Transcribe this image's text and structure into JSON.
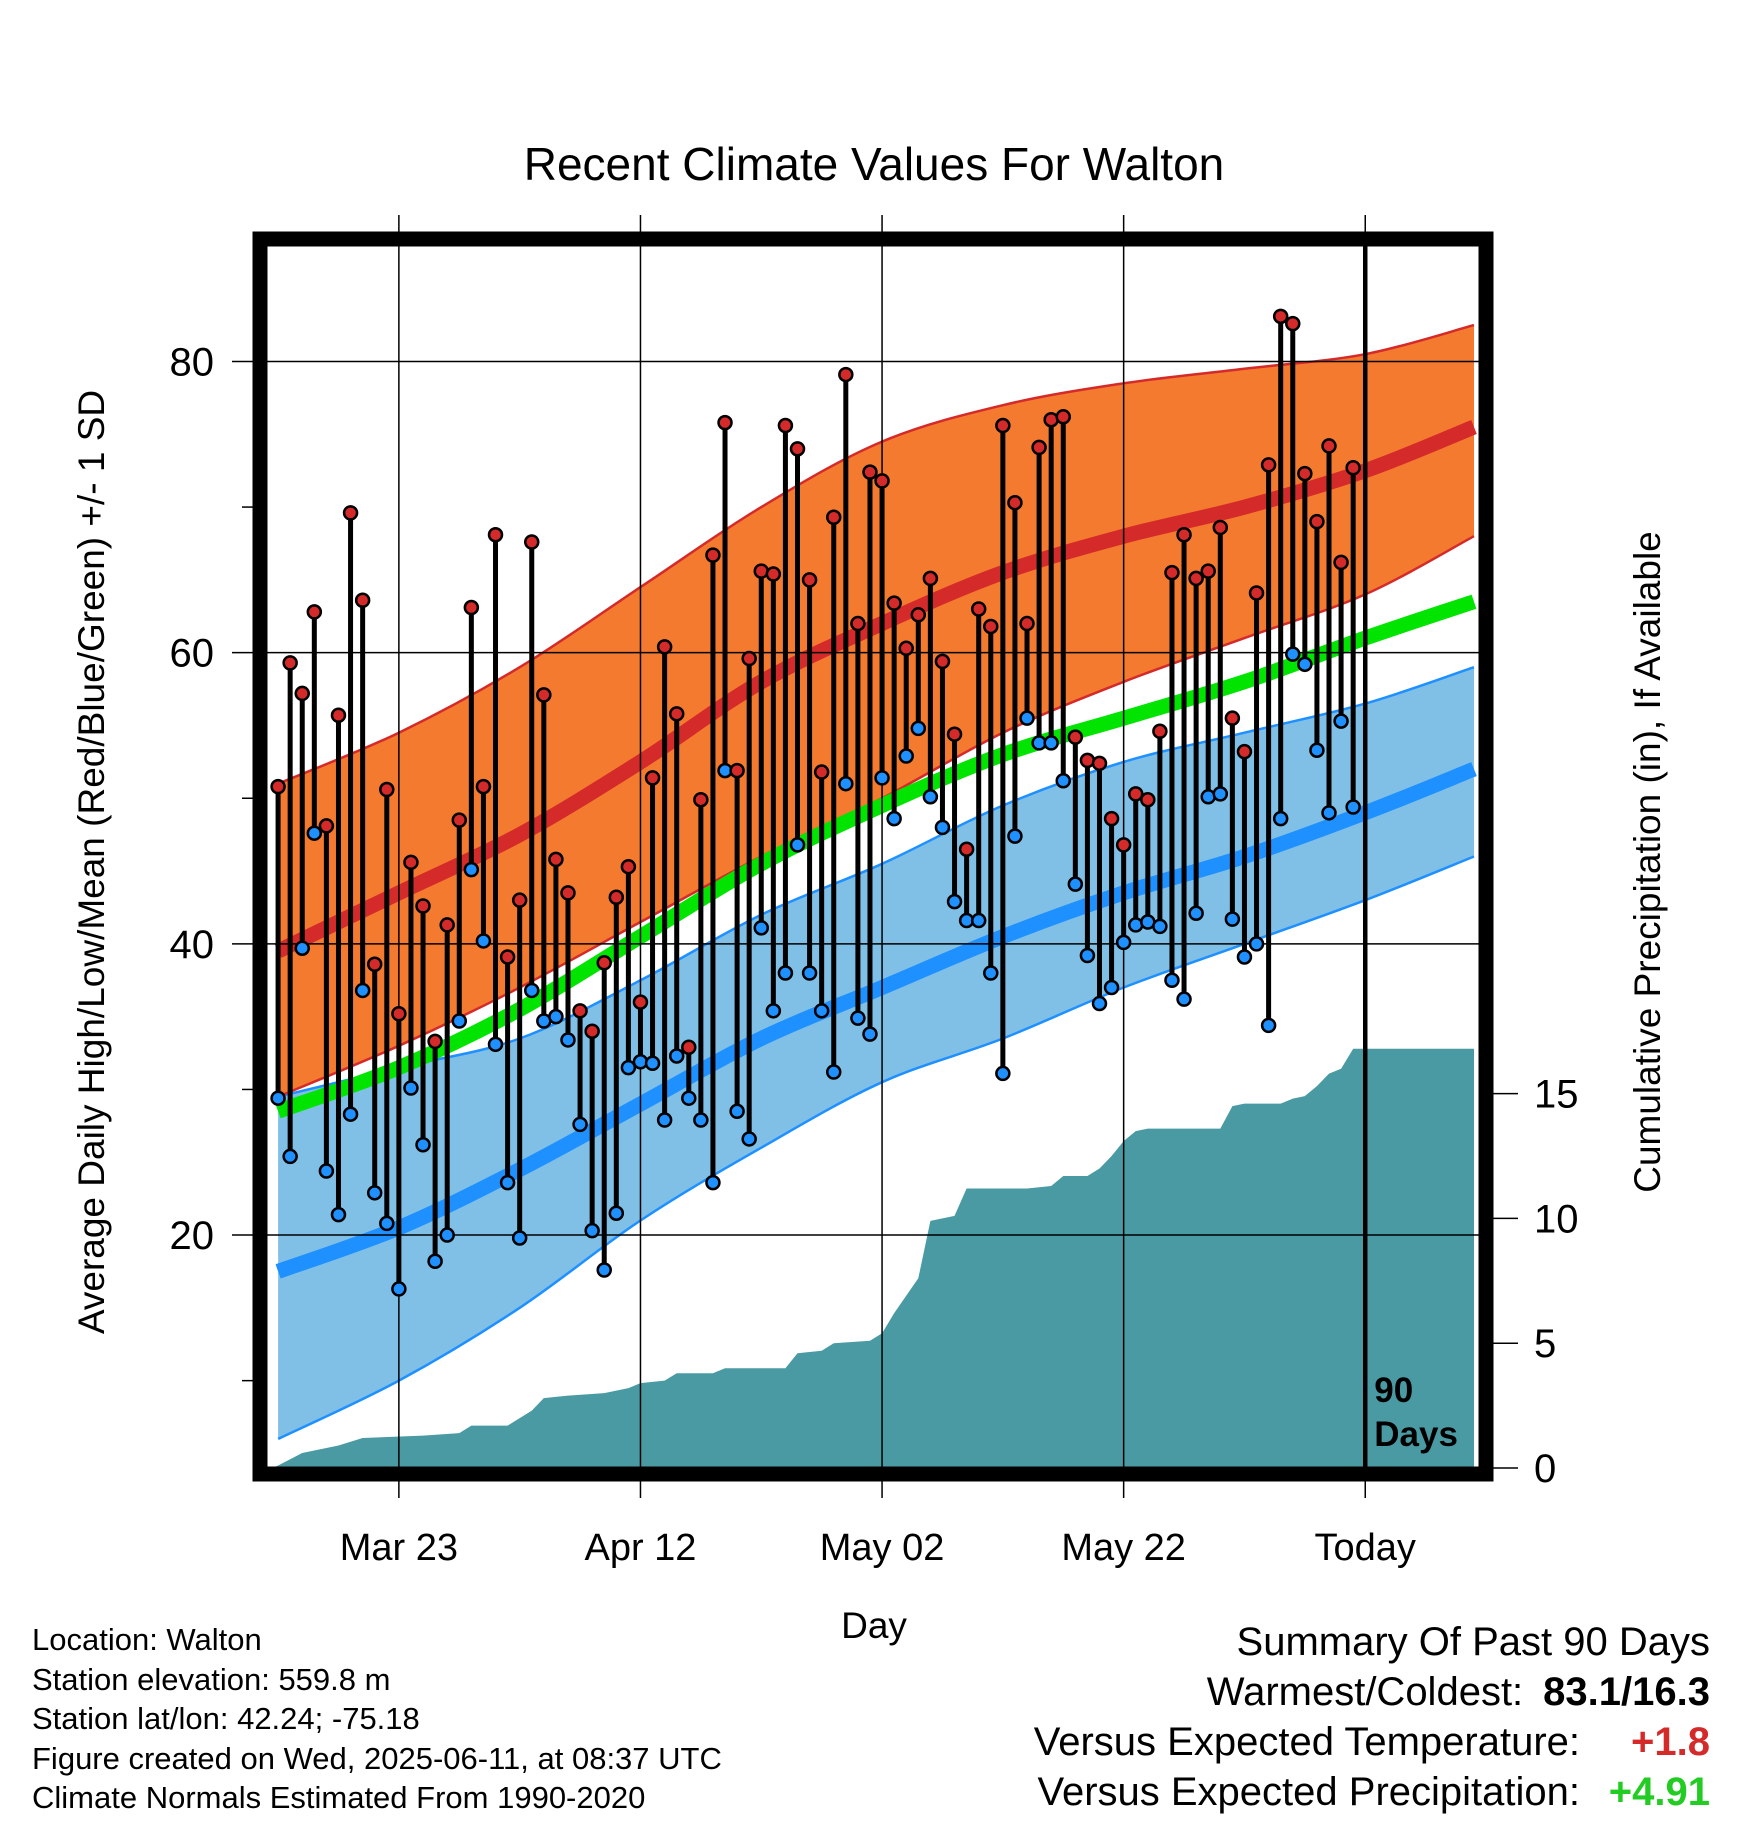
{
  "chart_data": {
    "type": "line",
    "title": "Recent Climate Values For Walton",
    "xlabel": "Day",
    "ylabel": "Average Daily High/Low/Mean (Red/Blue/Green) +/- 1 SD",
    "y2label": "Cumulative Precipitation (in), If Available",
    "x_ticks": [
      "Mar 23",
      "Apr 12",
      "May 02",
      "May 22",
      "Today"
    ],
    "x_tick_days": [
      10,
      30,
      50,
      70,
      90
    ],
    "xlim": [
      -1,
      99.5
    ],
    "ylim": [
      4,
      88
    ],
    "y_ticks": [
      20,
      40,
      60,
      80
    ],
    "y2lim": [
      0,
      49
    ],
    "y2_ticks": [
      0,
      5,
      10,
      15
    ],
    "today_day": 90,
    "today_label": [
      "90",
      "Days"
    ],
    "colors": {
      "high_band": "#f47a30",
      "high_mean": "#d42a2a",
      "low_band": "#80c0e6",
      "low_mean": "#1e90ff",
      "mean_line": "#00e400",
      "precip": "#4a9aa4",
      "high_marker": "#d42a2a",
      "low_marker": "#1e90ff",
      "plus_temp": "#d42a2a",
      "plus_precip": "#22cc22"
    },
    "normal_high": [
      [
        0,
        39.5
      ],
      [
        10,
        43.5
      ],
      [
        20,
        47.5
      ],
      [
        30,
        52.5
      ],
      [
        40,
        58
      ],
      [
        50,
        62
      ],
      [
        60,
        65.5
      ],
      [
        70,
        68
      ],
      [
        80,
        70
      ],
      [
        90,
        72.5
      ],
      [
        99,
        75.5
      ]
    ],
    "normal_high_sd_upper": [
      [
        0,
        51
      ],
      [
        10,
        54.5
      ],
      [
        20,
        59
      ],
      [
        30,
        64.5
      ],
      [
        40,
        70
      ],
      [
        50,
        74.5
      ],
      [
        60,
        77
      ],
      [
        70,
        78.5
      ],
      [
        80,
        79.5
      ],
      [
        90,
        80.5
      ],
      [
        99,
        82.5
      ]
    ],
    "normal_high_sd_lower": [
      [
        0,
        29.5
      ],
      [
        10,
        33
      ],
      [
        20,
        37
      ],
      [
        30,
        41.5
      ],
      [
        40,
        46
      ],
      [
        50,
        50
      ],
      [
        60,
        54.5
      ],
      [
        70,
        58
      ],
      [
        80,
        61
      ],
      [
        90,
        64
      ],
      [
        99,
        68
      ]
    ],
    "normal_mean": [
      [
        0,
        28.5
      ],
      [
        10,
        31.5
      ],
      [
        20,
        35.5
      ],
      [
        30,
        40.5
      ],
      [
        40,
        45.5
      ],
      [
        50,
        49.5
      ],
      [
        60,
        53
      ],
      [
        70,
        55.5
      ],
      [
        80,
        58
      ],
      [
        90,
        61
      ],
      [
        99,
        63.5
      ]
    ],
    "normal_low": [
      [
        0,
        17.5
      ],
      [
        10,
        20.5
      ],
      [
        20,
        24.5
      ],
      [
        30,
        29
      ],
      [
        40,
        33.5
      ],
      [
        50,
        37
      ],
      [
        60,
        40.5
      ],
      [
        70,
        43.5
      ],
      [
        80,
        46
      ],
      [
        90,
        49
      ],
      [
        99,
        52
      ]
    ],
    "normal_low_sd_upper": [
      [
        0,
        29.5
      ],
      [
        10,
        31.5
      ],
      [
        20,
        33.5
      ],
      [
        30,
        37.5
      ],
      [
        40,
        42
      ],
      [
        50,
        45.5
      ],
      [
        60,
        49.5
      ],
      [
        70,
        52.5
      ],
      [
        80,
        54.5
      ],
      [
        90,
        56.5
      ],
      [
        99,
        59
      ]
    ],
    "normal_low_sd_lower": [
      [
        0,
        6
      ],
      [
        10,
        10
      ],
      [
        20,
        15
      ],
      [
        30,
        21
      ],
      [
        40,
        26
      ],
      [
        50,
        30.5
      ],
      [
        60,
        33.5
      ],
      [
        70,
        37
      ],
      [
        80,
        40
      ],
      [
        90,
        43
      ],
      [
        99,
        46
      ]
    ],
    "daily_high": [
      50.8,
      59.3,
      57.2,
      62.8,
      48.1,
      55.7,
      69.6,
      63.6,
      38.6,
      50.6,
      35.2,
      45.6,
      42.6,
      33.3,
      41.3,
      48.5,
      63.1,
      50.8,
      68.1,
      39.1,
      43.0,
      67.6,
      57.1,
      45.8,
      43.5,
      35.4,
      34.0,
      38.7,
      43.2,
      45.3,
      36.0,
      51.4,
      60.4,
      55.8,
      32.9,
      49.9,
      66.7,
      75.8,
      51.9,
      59.6,
      65.6,
      65.4,
      75.6,
      74.0,
      65.0,
      51.8,
      69.3,
      79.1,
      62.0,
      72.4,
      71.8,
      63.4,
      60.3,
      62.6,
      65.1,
      59.4,
      54.4,
      46.5,
      63.0,
      61.8,
      75.6,
      70.3,
      62.0,
      74.1,
      76.0,
      76.2,
      54.2,
      52.6,
      52.4,
      48.6,
      46.8,
      50.3,
      49.9,
      54.6,
      65.5,
      68.1,
      65.1,
      65.6,
      68.6,
      55.5,
      53.2,
      64.1,
      72.9,
      83.1,
      82.6,
      72.3,
      69.0,
      74.2,
      66.2,
      72.7
    ],
    "daily_low": [
      29.4,
      25.4,
      39.7,
      47.6,
      24.4,
      21.4,
      28.3,
      36.8,
      22.9,
      20.8,
      16.3,
      30.1,
      26.2,
      18.2,
      20.0,
      34.7,
      45.1,
      40.2,
      33.1,
      23.6,
      19.8,
      36.8,
      34.7,
      35.0,
      33.4,
      27.6,
      20.3,
      17.6,
      21.5,
      31.5,
      31.9,
      31.8,
      27.9,
      32.3,
      29.4,
      27.9,
      23.6,
      51.9,
      28.5,
      26.6,
      41.1,
      35.4,
      38.0,
      46.8,
      38.0,
      35.4,
      31.2,
      51.0,
      34.9,
      33.8,
      51.4,
      48.6,
      52.9,
      54.8,
      50.1,
      48.0,
      42.9,
      41.6,
      41.6,
      38.0,
      31.1,
      47.4,
      55.5,
      53.8,
      53.8,
      51.2,
      44.1,
      39.2,
      35.9,
      37.0,
      40.1,
      41.3,
      41.5,
      41.2,
      37.5,
      36.2,
      42.1,
      50.1,
      50.3,
      41.7,
      39.1,
      40.0,
      34.4,
      48.6,
      59.9,
      59.2,
      53.3,
      49.0,
      55.3,
      49.4
    ],
    "cumulative_precip": [
      [
        -0.5,
        0
      ],
      [
        0,
        0.1
      ],
      [
        2,
        0.6
      ],
      [
        5,
        0.9
      ],
      [
        7,
        1.2
      ],
      [
        12,
        1.3
      ],
      [
        15,
        1.4
      ],
      [
        16,
        1.7
      ],
      [
        19,
        1.7
      ],
      [
        20,
        2.0
      ],
      [
        21,
        2.3
      ],
      [
        22,
        2.8
      ],
      [
        24,
        2.9
      ],
      [
        27,
        3.0
      ],
      [
        29,
        3.2
      ],
      [
        30,
        3.4
      ],
      [
        32,
        3.5
      ],
      [
        33,
        3.8
      ],
      [
        36,
        3.8
      ],
      [
        37,
        4.0
      ],
      [
        42,
        4.0
      ],
      [
        43,
        4.6
      ],
      [
        45,
        4.7
      ],
      [
        46,
        5.0
      ],
      [
        49,
        5.1
      ],
      [
        50,
        5.4
      ],
      [
        51,
        6.2
      ],
      [
        53,
        7.6
      ],
      [
        54,
        9.9
      ],
      [
        56,
        10.1
      ],
      [
        57,
        11.2
      ],
      [
        60,
        11.2
      ],
      [
        62,
        11.2
      ],
      [
        64,
        11.3
      ],
      [
        65,
        11.7
      ],
      [
        67,
        11.7
      ],
      [
        68,
        12.0
      ],
      [
        69,
        12.5
      ],
      [
        70,
        13.1
      ],
      [
        71,
        13.5
      ],
      [
        72,
        13.6
      ],
      [
        75,
        13.6
      ],
      [
        78,
        13.6
      ],
      [
        79,
        14.5
      ],
      [
        80,
        14.6
      ],
      [
        83,
        14.6
      ],
      [
        84,
        14.8
      ],
      [
        85,
        14.9
      ],
      [
        86,
        15.3
      ],
      [
        87,
        15.8
      ],
      [
        88,
        16.0
      ],
      [
        89,
        16.8
      ],
      [
        90,
        16.8
      ],
      [
        99,
        16.8
      ]
    ]
  },
  "info": {
    "location": "Location: Walton",
    "elevation": "Station elevation: 559.8 m",
    "latlon": "Station lat/lon: 42.24; -75.18",
    "created": "Figure created on Wed, 2025-06-11, at 08:37 UTC",
    "normals": "Climate Normals Estimated From 1990-2020"
  },
  "summary": {
    "title": "Summary Of Past 90 Days",
    "warmest_label": "Warmest/Coldest:",
    "warmest_value": "83.1/16.3",
    "temp_label": "Versus Expected Temperature:",
    "temp_value": "+1.8",
    "precip_label": "Versus Expected Precipitation:",
    "precip_value": "+4.91"
  }
}
